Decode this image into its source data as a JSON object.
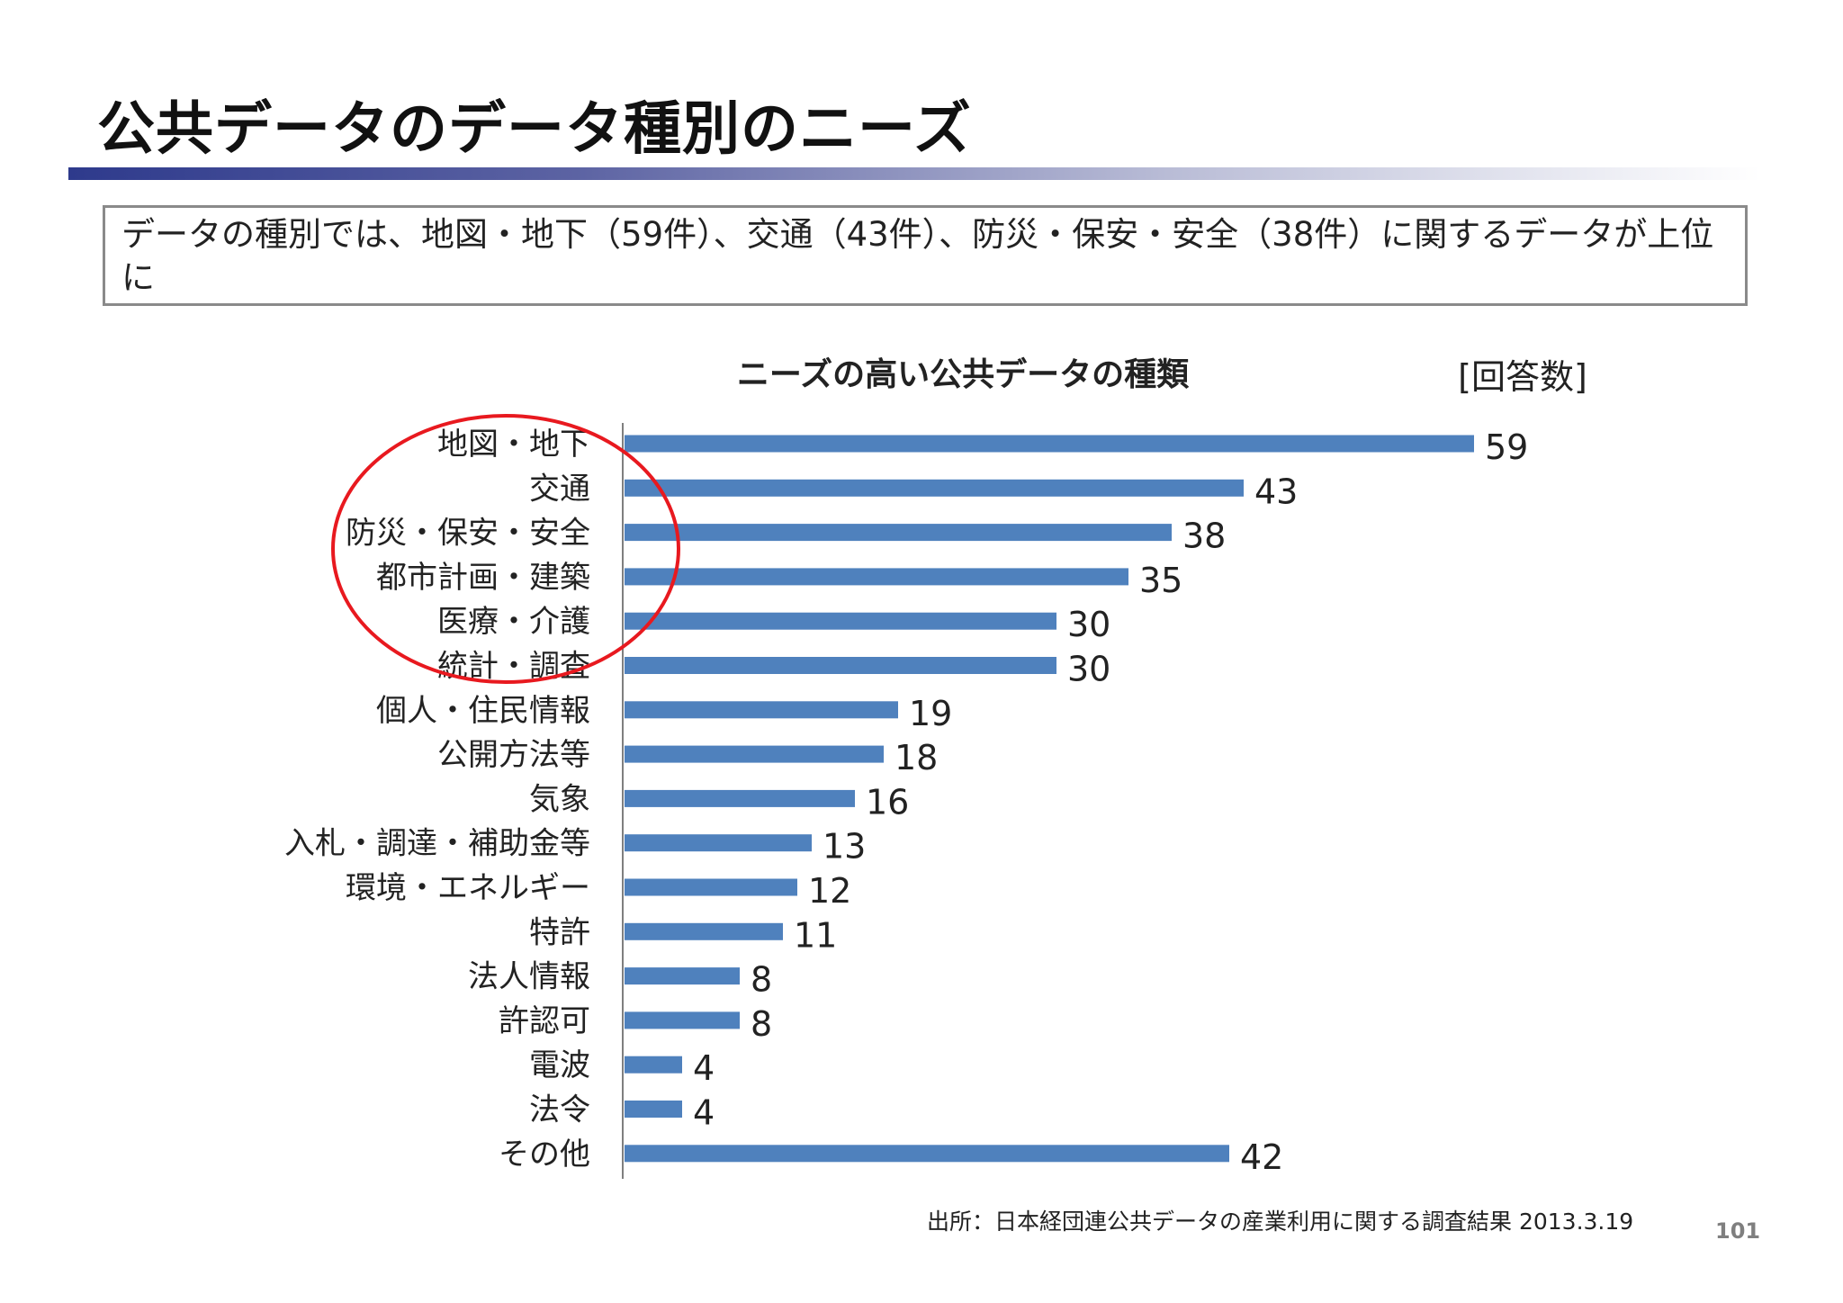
{
  "slide": {
    "title": "公共データのデータ種別のニーズ",
    "summary": "データの種別では、地図・地下（59件）、交通（43件）、防災・保安・安全（38件）に関するデータが上位に",
    "footnote": "出所：日本経団連公共データの産業利用に関する調査結果 2013.3.19",
    "page_number": "101"
  },
  "chart_data": {
    "type": "bar",
    "orientation": "horizontal",
    "title": "ニーズの高い公共データの種類",
    "unit_label": "[回答数]",
    "categories": [
      "地図・地下",
      "交通",
      "防災・保安・安全",
      "都市計画・建築",
      "医療・介護",
      "統計・調査",
      "個人・住民情報",
      "公開方法等",
      "気象",
      "入札・調達・補助金等",
      "環境・エネルギー",
      "特許",
      "法人情報",
      "許認可",
      "電波",
      "法令",
      "その他"
    ],
    "values": [
      59,
      43,
      38,
      35,
      30,
      30,
      19,
      18,
      16,
      13,
      12,
      11,
      8,
      8,
      4,
      4,
      42
    ],
    "xlim": [
      0,
      60
    ],
    "bar_color": "#4f81bd",
    "highlight_color": "#e8191f",
    "grid": false,
    "data_labels": true
  }
}
